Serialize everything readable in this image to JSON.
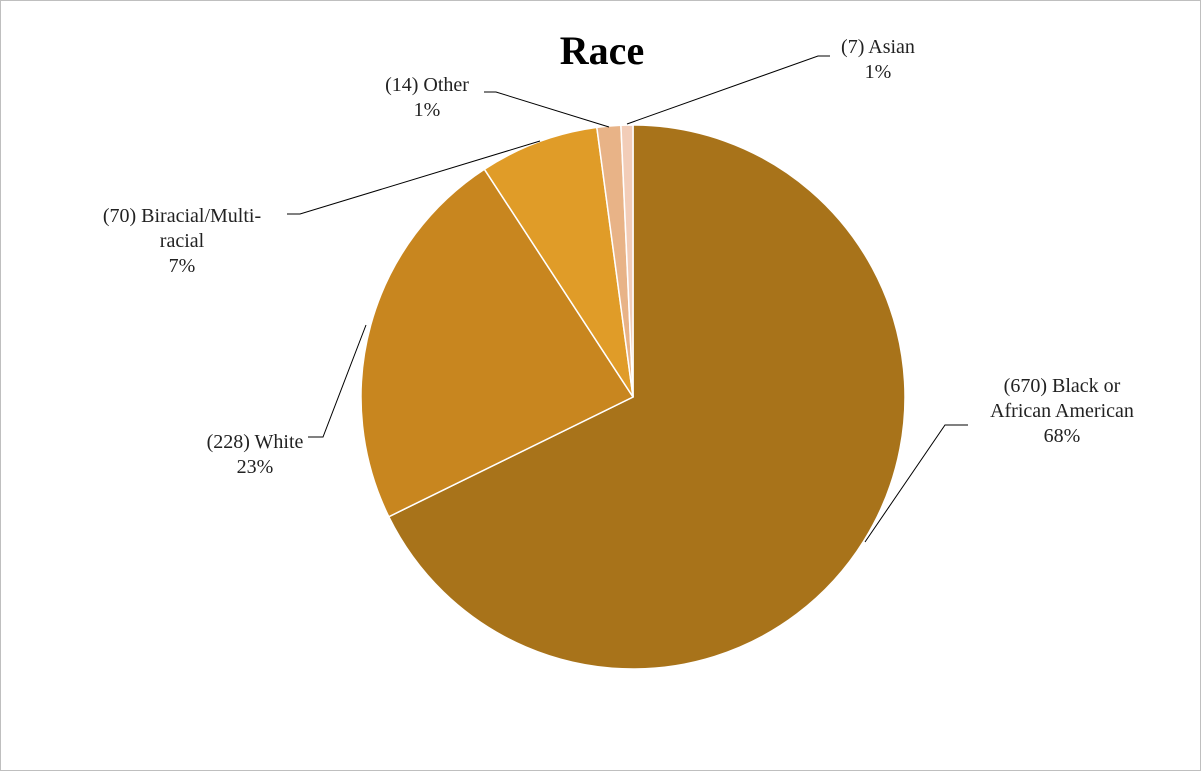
{
  "chart_data": {
    "type": "pie",
    "title": "Race",
    "start_angle_deg": 0,
    "direction": "clockwise",
    "slices": [
      {
        "name": "Black or African American",
        "count": 670,
        "percent": "68%",
        "color": "#A8731A",
        "label_lines": [
          "(670) Black or",
          "African American",
          "68%"
        ]
      },
      {
        "name": "White",
        "count": 228,
        "percent": "23%",
        "color": "#C8861F",
        "label_lines": [
          "(228) White",
          "23%"
        ]
      },
      {
        "name": "Biracial/Multi-racial",
        "count": 70,
        "percent": "7%",
        "color": "#E09C28",
        "label_lines": [
          "(70) Biracial/Multi-",
          "racial",
          "7%"
        ]
      },
      {
        "name": "Other",
        "count": 14,
        "percent": "1%",
        "color": "#E8B387",
        "label_lines": [
          "(14) Other",
          "1%"
        ]
      },
      {
        "name": "Asian",
        "count": 7,
        "percent": "1%",
        "color": "#F2CDB8",
        "label_lines": [
          "(7) Asian",
          "1%"
        ]
      }
    ]
  }
}
